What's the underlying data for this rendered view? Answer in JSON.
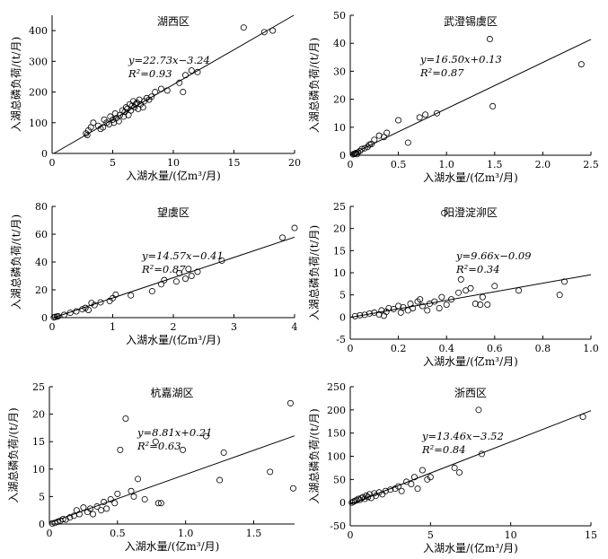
{
  "chart_data": [
    {
      "type": "scatter",
      "title": "湖西区",
      "xlabel": "入湖水量/(亿m³/月)",
      "ylabel": "入湖总磷负荷/(t/月)",
      "xlim": [
        0,
        20
      ],
      "ylim": [
        0,
        450
      ],
      "xticks": [
        0,
        5,
        10,
        15,
        20
      ],
      "yticks": [
        0,
        100,
        200,
        300,
        400
      ],
      "equation": "y=22.73x−3.24",
      "r2": "R²=0.93",
      "slope": 22.73,
      "intercept": -3.24,
      "points": [
        [
          2.8,
          65
        ],
        [
          3.0,
          75
        ],
        [
          3.2,
          85
        ],
        [
          2.9,
          60
        ],
        [
          3.4,
          100
        ],
        [
          3.8,
          90
        ],
        [
          4.0,
          80
        ],
        [
          4.2,
          85
        ],
        [
          4.3,
          110
        ],
        [
          4.5,
          100
        ],
        [
          4.7,
          95
        ],
        [
          4.8,
          120
        ],
        [
          5.0,
          110
        ],
        [
          5.1,
          100
        ],
        [
          5.2,
          130
        ],
        [
          5.3,
          115
        ],
        [
          5.5,
          105
        ],
        [
          5.6,
          125
        ],
        [
          5.8,
          140
        ],
        [
          5.9,
          120
        ],
        [
          6.0,
          135
        ],
        [
          6.1,
          150
        ],
        [
          6.2,
          145
        ],
        [
          6.3,
          125
        ],
        [
          6.4,
          160
        ],
        [
          6.5,
          140
        ],
        [
          6.6,
          155
        ],
        [
          6.7,
          170
        ],
        [
          6.8,
          150
        ],
        [
          6.9,
          160
        ],
        [
          7.0,
          165
        ],
        [
          7.1,
          145
        ],
        [
          7.2,
          175
        ],
        [
          7.3,
          160
        ],
        [
          7.5,
          150
        ],
        [
          7.6,
          170
        ],
        [
          7.8,
          180
        ],
        [
          8.0,
          175
        ],
        [
          8.2,
          185
        ],
        [
          8.5,
          200
        ],
        [
          9.0,
          210
        ],
        [
          9.5,
          205
        ],
        [
          10.5,
          230
        ],
        [
          11.0,
          255
        ],
        [
          11.5,
          270
        ],
        [
          12.0,
          265
        ],
        [
          10.8,
          200
        ],
        [
          15.8,
          410
        ],
        [
          17.5,
          395
        ],
        [
          18.2,
          400
        ]
      ]
    },
    {
      "type": "scatter",
      "title": "武澄锡虞区",
      "xlabel": "入湖水量/(亿m³/月)",
      "ylabel": "入湖总磷负荷/(t/月)",
      "xlim": [
        0,
        2.5
      ],
      "ylim": [
        0,
        50
      ],
      "xticks": [
        0,
        0.5,
        1.0,
        1.5,
        2.0,
        2.5
      ],
      "yticks": [
        0,
        10,
        20,
        30,
        40,
        50
      ],
      "equation": "y=16.50x+0.13",
      "r2": "R²=0.87",
      "slope": 16.5,
      "intercept": 0.13,
      "points": [
        [
          0.03,
          0.3
        ],
        [
          0.04,
          0.5
        ],
        [
          0.05,
          0.6
        ],
        [
          0.06,
          0.8
        ],
        [
          0.07,
          0.4
        ],
        [
          0.08,
          1.0
        ],
        [
          0.1,
          1.5
        ],
        [
          0.12,
          2.2
        ],
        [
          0.15,
          2.5
        ],
        [
          0.18,
          3.0
        ],
        [
          0.2,
          3.8
        ],
        [
          0.22,
          4.0
        ],
        [
          0.25,
          5.5
        ],
        [
          0.3,
          7.0
        ],
        [
          0.35,
          6.5
        ],
        [
          0.38,
          8.0
        ],
        [
          0.5,
          12.5
        ],
        [
          0.6,
          4.5
        ],
        [
          0.72,
          13.5
        ],
        [
          0.78,
          14.5
        ],
        [
          0.9,
          15.0
        ],
        [
          1.45,
          41.5
        ],
        [
          1.48,
          17.5
        ],
        [
          2.4,
          32.5
        ]
      ]
    },
    {
      "type": "scatter",
      "title": "望虞区",
      "xlabel": "入湖水量/(亿m³/月)",
      "ylabel": "入湖总磷负荷/(t/月)",
      "xlim": [
        0,
        4
      ],
      "ylim": [
        0,
        80
      ],
      "xticks": [
        0,
        1,
        2,
        3,
        4
      ],
      "yticks": [
        0,
        20,
        40,
        60,
        80
      ],
      "equation": "y=14.57x−0.41",
      "r2": "R²=0.87",
      "slope": 14.57,
      "intercept": -0.41,
      "points": [
        [
          0.03,
          0.2
        ],
        [
          0.05,
          0.5
        ],
        [
          0.08,
          0.8
        ],
        [
          0.1,
          1.0
        ],
        [
          0.2,
          2.0
        ],
        [
          0.3,
          3.5
        ],
        [
          0.4,
          4.5
        ],
        [
          0.5,
          6.0
        ],
        [
          0.55,
          7.0
        ],
        [
          0.6,
          5.5
        ],
        [
          0.65,
          10.5
        ],
        [
          0.7,
          9.0
        ],
        [
          0.8,
          11.0
        ],
        [
          0.95,
          12.0
        ],
        [
          1.0,
          14.0
        ],
        [
          1.05,
          16.5
        ],
        [
          1.3,
          16.0
        ],
        [
          1.65,
          19.0
        ],
        [
          1.8,
          24.0
        ],
        [
          1.85,
          27.0
        ],
        [
          2.05,
          26.0
        ],
        [
          2.1,
          32.0
        ],
        [
          2.2,
          28.0
        ],
        [
          2.25,
          35.0
        ],
        [
          2.3,
          30.0
        ],
        [
          2.4,
          33.0
        ],
        [
          2.8,
          41.0
        ],
        [
          3.8,
          57.5
        ],
        [
          4.0,
          64.5
        ]
      ]
    },
    {
      "type": "scatter",
      "title": "阳澄淀泖区",
      "xlabel": "入湖水量/(亿m³/月)",
      "ylabel": "入湖总磷负荷/(t/月)",
      "xlim": [
        0,
        1.0
      ],
      "ylim": [
        -5,
        25
      ],
      "xticks": [
        0,
        0.2,
        0.4,
        0.6,
        0.8,
        1.0
      ],
      "yticks": [
        -5,
        0,
        5,
        10,
        15,
        20,
        25
      ],
      "equation": "y=9.66x−0.09",
      "r2": "R²=0.34",
      "slope": 9.66,
      "intercept": -0.09,
      "points": [
        [
          0.02,
          0.2
        ],
        [
          0.04,
          0.4
        ],
        [
          0.06,
          0.5
        ],
        [
          0.08,
          0.8
        ],
        [
          0.1,
          1.0
        ],
        [
          0.12,
          0.6
        ],
        [
          0.13,
          1.5
        ],
        [
          0.14,
          0.3
        ],
        [
          0.15,
          1.2
        ],
        [
          0.16,
          2.0
        ],
        [
          0.18,
          1.8
        ],
        [
          0.2,
          2.5
        ],
        [
          0.21,
          1.0
        ],
        [
          0.22,
          2.2
        ],
        [
          0.24,
          1.5
        ],
        [
          0.25,
          3.0
        ],
        [
          0.26,
          2.0
        ],
        [
          0.28,
          3.5
        ],
        [
          0.29,
          4.0
        ],
        [
          0.3,
          2.5
        ],
        [
          0.32,
          1.5
        ],
        [
          0.33,
          3.0
        ],
        [
          0.35,
          3.5
        ],
        [
          0.37,
          2.0
        ],
        [
          0.38,
          4.5
        ],
        [
          0.39,
          23.5
        ],
        [
          0.4,
          2.8
        ],
        [
          0.42,
          4.0
        ],
        [
          0.45,
          5.5
        ],
        [
          0.46,
          8.5
        ],
        [
          0.48,
          6.0
        ],
        [
          0.5,
          6.5
        ],
        [
          0.52,
          3.0
        ],
        [
          0.54,
          2.8
        ],
        [
          0.55,
          4.5
        ],
        [
          0.57,
          2.8
        ],
        [
          0.6,
          7.0
        ],
        [
          0.7,
          6.0
        ],
        [
          0.87,
          5.0
        ],
        [
          0.89,
          8.0
        ]
      ]
    },
    {
      "type": "scatter",
      "title": "杭嘉湖区",
      "xlabel": "入湖水量/(亿m³/月)",
      "ylabel": "入湖总磷负荷/(t/月)",
      "xlim": [
        0,
        1.8
      ],
      "ylim": [
        0,
        25
      ],
      "xticks": [
        0,
        0.5,
        1.0,
        1.5
      ],
      "yticks": [
        0,
        5,
        10,
        15,
        20,
        25
      ],
      "equation": "y=8.81x+0.21",
      "r2": "R²=0.63",
      "slope": 8.81,
      "intercept": 0.21,
      "points": [
        [
          0.02,
          0.1
        ],
        [
          0.04,
          0.2
        ],
        [
          0.06,
          0.4
        ],
        [
          0.08,
          0.6
        ],
        [
          0.1,
          0.9
        ],
        [
          0.12,
          0.8
        ],
        [
          0.15,
          1.2
        ],
        [
          0.18,
          1.5
        ],
        [
          0.2,
          2.5
        ],
        [
          0.22,
          1.8
        ],
        [
          0.25,
          3.0
        ],
        [
          0.28,
          2.2
        ],
        [
          0.3,
          2.8
        ],
        [
          0.32,
          1.8
        ],
        [
          0.35,
          3.2
        ],
        [
          0.38,
          2.5
        ],
        [
          0.4,
          4.0
        ],
        [
          0.42,
          2.8
        ],
        [
          0.45,
          4.5
        ],
        [
          0.48,
          3.8
        ],
        [
          0.5,
          5.5
        ],
        [
          0.52,
          13.5
        ],
        [
          0.56,
          19.2
        ],
        [
          0.6,
          6.0
        ],
        [
          0.62,
          5.0
        ],
        [
          0.65,
          8.2
        ],
        [
          0.7,
          4.5
        ],
        [
          0.78,
          15.0
        ],
        [
          0.8,
          3.8
        ],
        [
          0.82,
          3.8
        ],
        [
          0.98,
          13.5
        ],
        [
          1.15,
          16.0
        ],
        [
          1.25,
          8.0
        ],
        [
          1.28,
          13.0
        ],
        [
          1.62,
          9.5
        ],
        [
          1.77,
          22.0
        ],
        [
          1.79,
          6.5
        ]
      ]
    },
    {
      "type": "scatter",
      "title": "浙西区",
      "xlabel": "入湖水量/(亿m³/月)",
      "ylabel": "入湖总磷负荷/(t/月)",
      "xlim": [
        0,
        15
      ],
      "ylim": [
        -50,
        250
      ],
      "xticks": [
        0,
        5,
        10,
        15
      ],
      "yticks": [
        -50,
        0,
        50,
        100,
        150,
        200,
        250
      ],
      "equation": "y=13.46x−3.52",
      "r2": "R²=0.84",
      "slope": 13.46,
      "intercept": -3.52,
      "points": [
        [
          0.1,
          0
        ],
        [
          0.2,
          2
        ],
        [
          0.3,
          4
        ],
        [
          0.4,
          5
        ],
        [
          0.5,
          8
        ],
        [
          0.6,
          6
        ],
        [
          0.7,
          10
        ],
        [
          0.8,
          12
        ],
        [
          0.9,
          8
        ],
        [
          1.0,
          15
        ],
        [
          1.1,
          12
        ],
        [
          1.2,
          18
        ],
        [
          1.3,
          10
        ],
        [
          1.5,
          20
        ],
        [
          1.6,
          15
        ],
        [
          1.8,
          22
        ],
        [
          2.0,
          18
        ],
        [
          2.2,
          25
        ],
        [
          2.5,
          28
        ],
        [
          2.8,
          30
        ],
        [
          3.0,
          35
        ],
        [
          3.2,
          25
        ],
        [
          3.5,
          45
        ],
        [
          3.8,
          40
        ],
        [
          4.0,
          55
        ],
        [
          4.2,
          30
        ],
        [
          4.5,
          70
        ],
        [
          4.8,
          50
        ],
        [
          5.0,
          55
        ],
        [
          6.5,
          75
        ],
        [
          6.8,
          65
        ],
        [
          8.0,
          200
        ],
        [
          8.2,
          105
        ],
        [
          14.5,
          185
        ]
      ]
    }
  ]
}
